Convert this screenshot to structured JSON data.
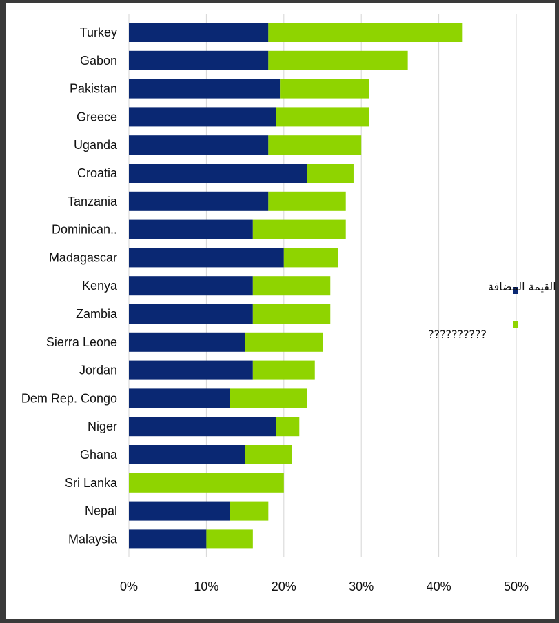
{
  "chart_data": {
    "type": "bar",
    "orientation": "horizontal",
    "stacked": true,
    "categories": [
      "Turkey",
      "Gabon",
      "Pakistan",
      "Greece",
      "Uganda",
      "Croatia",
      "Tanzania",
      "Dominican..",
      "Madagascar",
      "Kenya",
      "Zambia",
      "Sierra Leone",
      "Jordan",
      "Dem Rep. Congo",
      "Niger",
      "Ghana",
      "Sri Lanka",
      "Nepal",
      "Malaysia"
    ],
    "series": [
      {
        "name": "ضريبة القيمة المضافة",
        "color": "#0a2873",
        "values": [
          18,
          18,
          19.5,
          19,
          18,
          23,
          18,
          16,
          20,
          16,
          16,
          15,
          16,
          13,
          19,
          15,
          0,
          13,
          10
        ]
      },
      {
        "name": "??????????",
        "color": "#8fd400",
        "values": [
          25,
          18,
          11.5,
          12,
          12,
          6,
          10,
          12,
          7,
          10,
          10,
          10,
          8,
          10,
          3,
          6,
          20,
          5,
          6
        ]
      }
    ],
    "xlim": [
      0,
      50
    ],
    "xticks": [
      "0%",
      "10%",
      "20%",
      "30%",
      "40%",
      "50%"
    ],
    "grid": true,
    "legend_position": "right"
  }
}
